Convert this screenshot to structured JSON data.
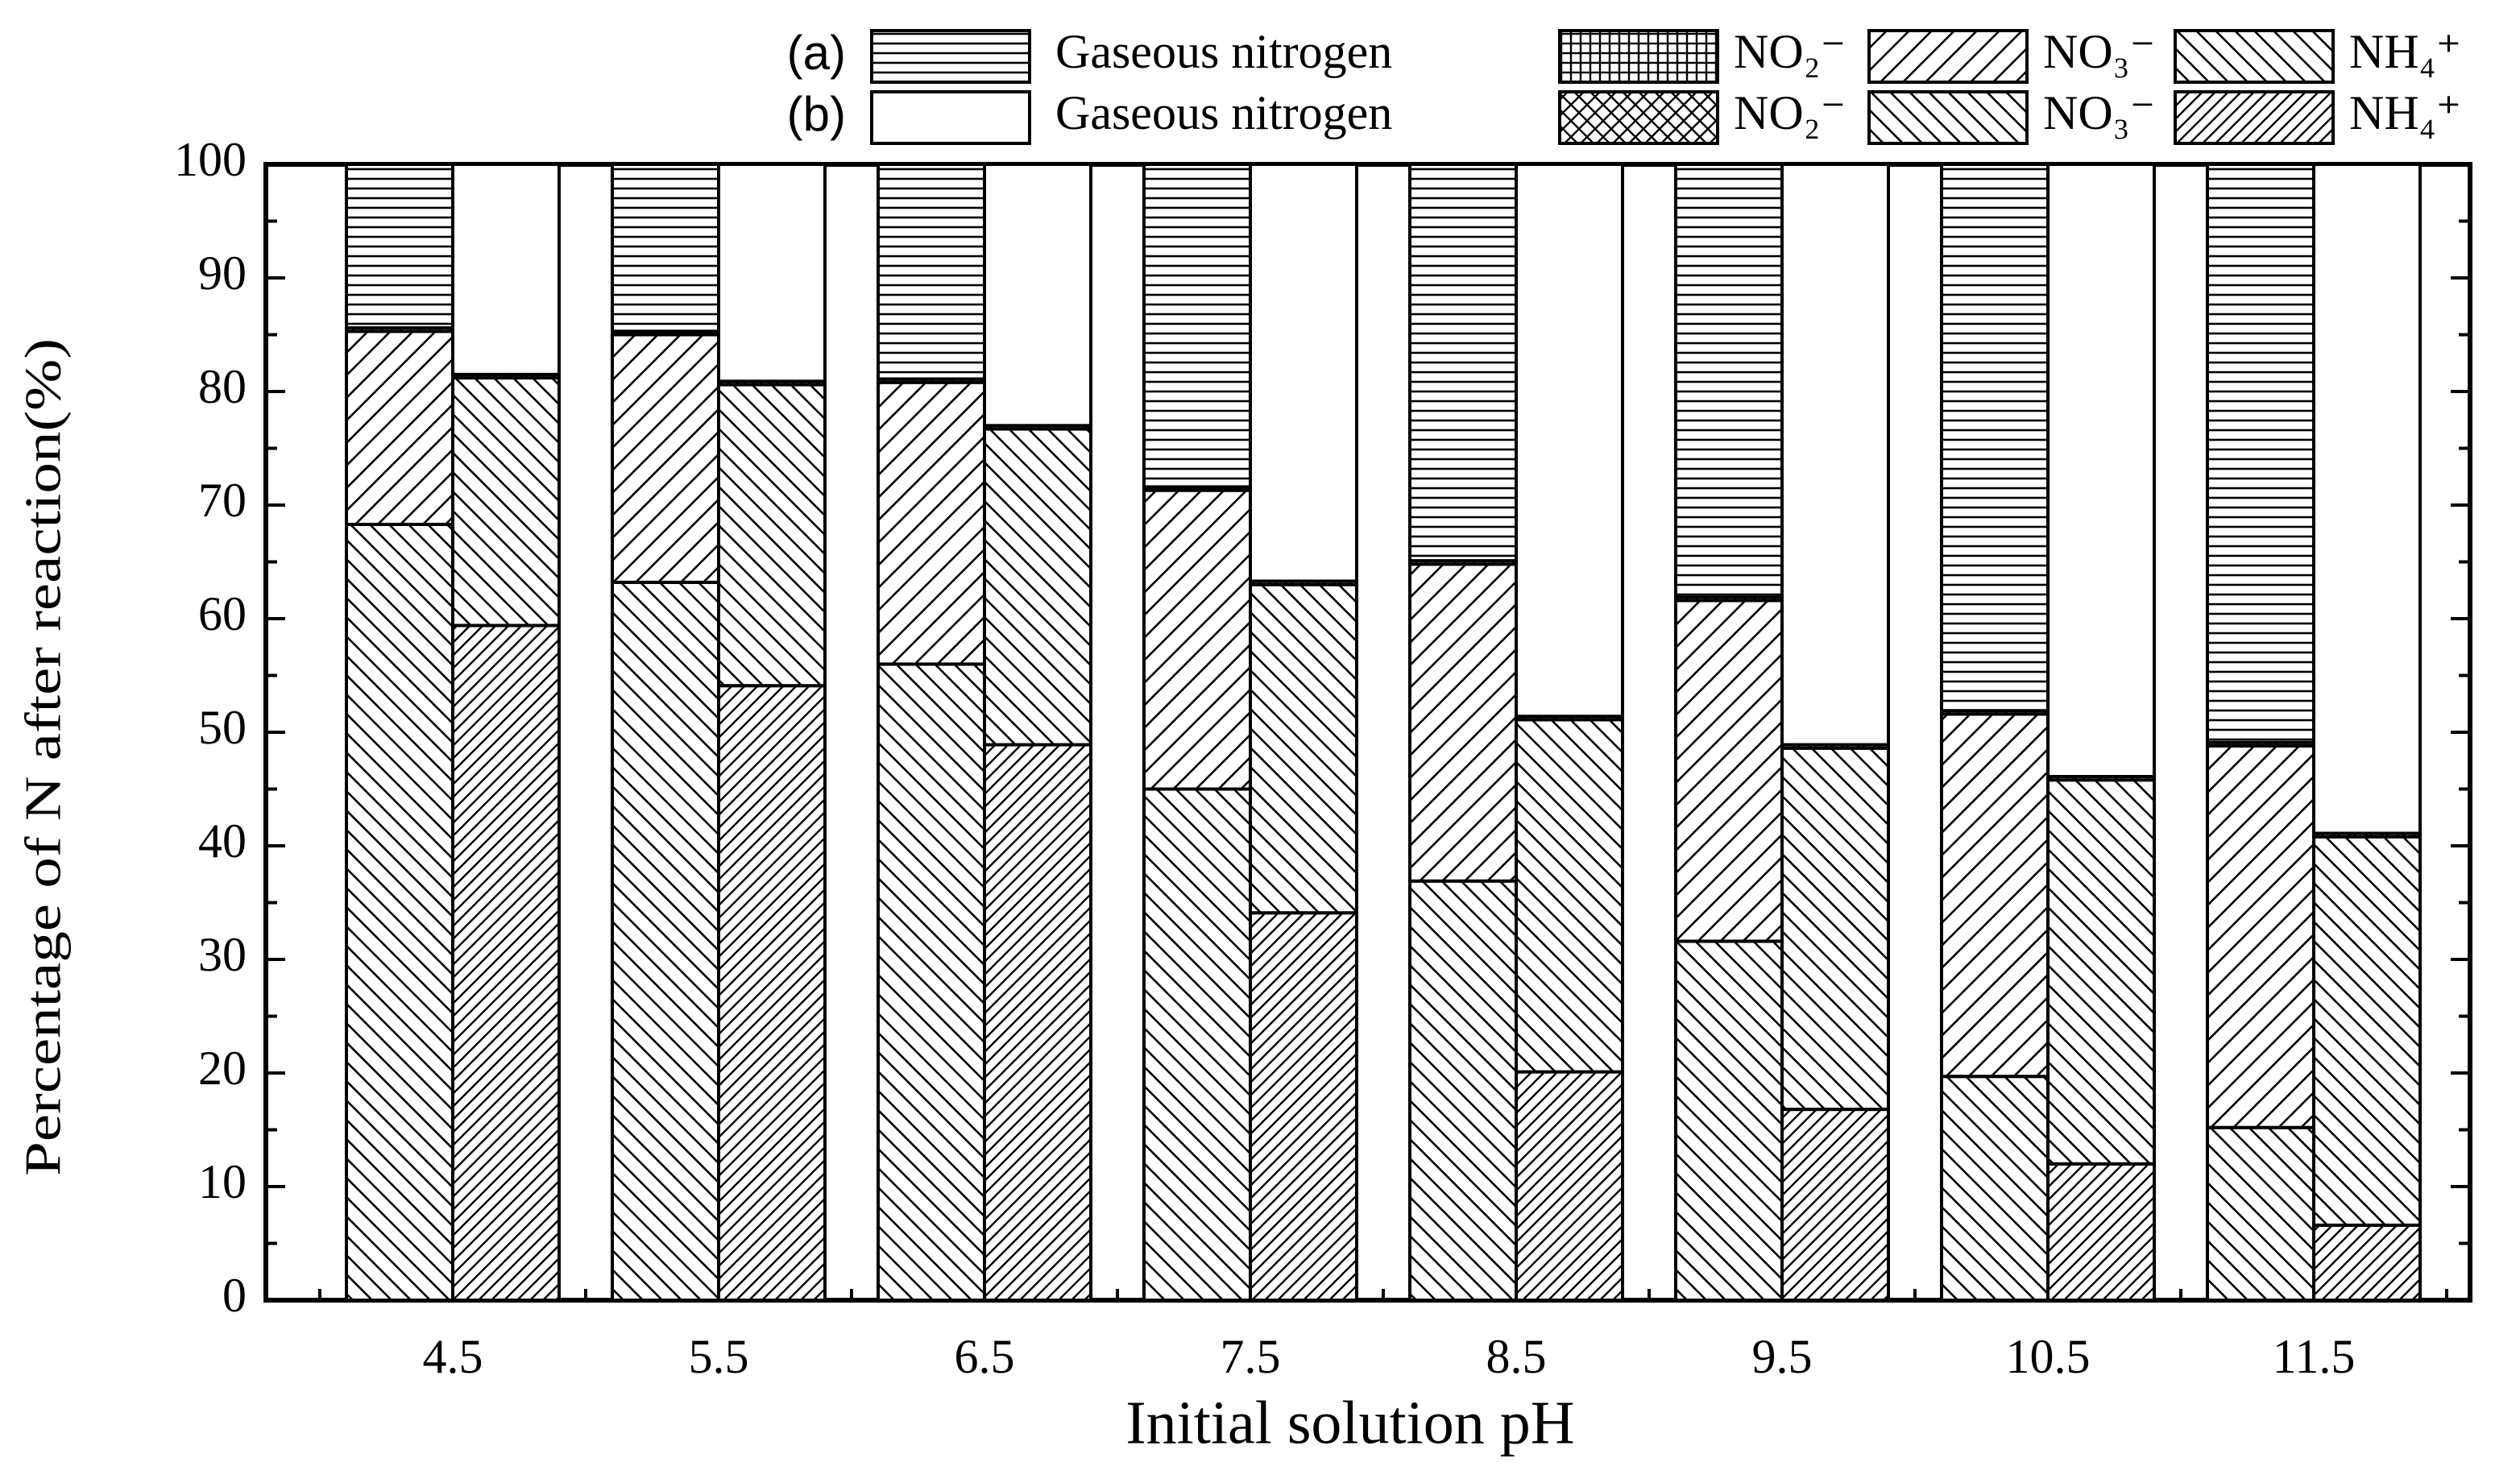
{
  "chart_data": {
    "type": "bar",
    "stacked": true,
    "xlabel": "Initial solution pH",
    "ylabel": "Percentage of N after reaction(%)",
    "categories": [
      "4.5",
      "5.5",
      "6.5",
      "7.5",
      "8.5",
      "9.5",
      "10.5",
      "11.5"
    ],
    "ylim": [
      0,
      100
    ],
    "yticks": [
      0,
      10,
      20,
      30,
      40,
      50,
      60,
      70,
      80,
      90,
      100
    ],
    "groups": [
      {
        "label": "(a)",
        "series": [
          {
            "name": "Gaseous nitrogen",
            "color": "#000000",
            "pattern": "horizontal",
            "values": [
              14.4,
              14.7,
              18.9,
              28.4,
              34.9,
              38.1,
              48.1,
              50.9
            ]
          },
          {
            "name": "NO₂⁻",
            "color": "#000000",
            "pattern": "grid",
            "values": [
              0.3,
              0.3,
              0.3,
              0.3,
              0.3,
              0.3,
              0.3,
              0.3
            ]
          },
          {
            "name": "NO₃⁻",
            "color": "#000000",
            "pattern": "forward",
            "values": [
              17.0,
              21.8,
              24.8,
              26.3,
              27.9,
              30.0,
              31.9,
              33.6
            ]
          },
          {
            "name": "NH₄⁺",
            "color": "#000000",
            "pattern": "backward",
            "values": [
              68.3,
              63.2,
              56.0,
              45.0,
              36.9,
              31.6,
              19.7,
              15.2
            ]
          }
        ]
      },
      {
        "label": "(b)",
        "series": [
          {
            "name": "Gaseous nitrogen",
            "color": "#000000",
            "pattern": "none",
            "values": [
              18.5,
              19.1,
              23.0,
              36.7,
              48.6,
              51.1,
              53.9,
              58.9
            ]
          },
          {
            "name": "NO₂⁻",
            "color": "#000000",
            "pattern": "cross",
            "values": [
              0.3,
              0.3,
              0.3,
              0.3,
              0.3,
              0.3,
              0.3,
              0.3
            ]
          },
          {
            "name": "NO₃⁻",
            "color": "#000000",
            "pattern": "backward",
            "values": [
              21.8,
              26.5,
              27.8,
              28.9,
              31.0,
              31.8,
              33.8,
              34.2
            ]
          },
          {
            "name": "NH₄⁺",
            "color": "#000000",
            "pattern": "forward-dense",
            "values": [
              59.4,
              54.1,
              48.9,
              34.1,
              20.1,
              16.8,
              12.0,
              6.6
            ]
          }
        ]
      }
    ]
  }
}
